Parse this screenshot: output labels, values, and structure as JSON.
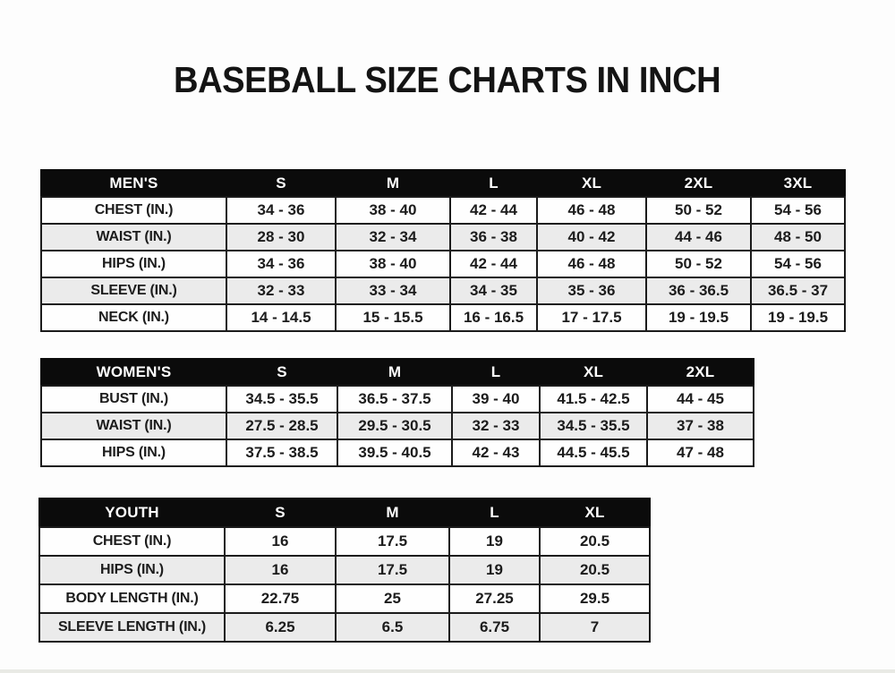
{
  "page_title": "BASEBALL SIZE CHARTS IN INCH",
  "colors": {
    "background": "#fdfdfd",
    "header_bg": "#0b0b0b",
    "header_text": "#ffffff",
    "row_white": "#fefefe",
    "row_gray": "#ebebeb",
    "border": "#1b1b1b",
    "text": "#1c1c1c",
    "title": "#141414"
  },
  "chart_data": [
    {
      "type": "table",
      "id": "mens",
      "title": "MEN'S",
      "columns": [
        "MEN'S",
        "S",
        "M",
        "L",
        "XL",
        "2XL",
        "3XL"
      ],
      "rows": [
        [
          "CHEST (IN.)",
          "34 - 36",
          "38 - 40",
          "42 - 44",
          "46 - 48",
          "50 - 52",
          "54 - 56"
        ],
        [
          "WAIST (IN.)",
          "28 - 30",
          "32 - 34",
          "36 - 38",
          "40 - 42",
          "44 - 46",
          "48 - 50"
        ],
        [
          "HIPS (IN.)",
          "34 - 36",
          "38 - 40",
          "42 - 44",
          "46 - 48",
          "50 - 52",
          "54 - 56"
        ],
        [
          "SLEEVE (IN.)",
          "32 - 33",
          "33 - 34",
          "34 - 35",
          "35 - 36",
          "36 - 36.5",
          "36.5 - 37"
        ],
        [
          "NECK (IN.)",
          "14 - 14.5",
          "15 - 15.5",
          "16 - 16.5",
          "17 - 17.5",
          "19 - 19.5",
          "19 - 19.5"
        ]
      ]
    },
    {
      "type": "table",
      "id": "womens",
      "title": "WOMEN'S",
      "columns": [
        "WOMEN'S",
        "S",
        "M",
        "L",
        "XL",
        "2XL"
      ],
      "rows": [
        [
          "BUST (IN.)",
          "34.5 - 35.5",
          "36.5 - 37.5",
          "39 - 40",
          "41.5 - 42.5",
          "44 - 45"
        ],
        [
          "WAIST (IN.)",
          "27.5 - 28.5",
          "29.5 - 30.5",
          "32 - 33",
          "34.5 - 35.5",
          "37 - 38"
        ],
        [
          "HIPS (IN.)",
          "37.5 - 38.5",
          "39.5 - 40.5",
          "42 - 43",
          "44.5 - 45.5",
          "47 - 48"
        ]
      ]
    },
    {
      "type": "table",
      "id": "youth",
      "title": "YOUTH",
      "columns": [
        "YOUTH",
        "S",
        "M",
        "L",
        "XL"
      ],
      "rows": [
        [
          "CHEST (IN.)",
          "16",
          "17.5",
          "19",
          "20.5"
        ],
        [
          "HIPS (IN.)",
          "16",
          "17.5",
          "19",
          "20.5"
        ],
        [
          "BODY LENGTH (IN.)",
          "22.75",
          "25",
          "27.25",
          "29.5"
        ],
        [
          "SLEEVE LENGTH (IN.)",
          "6.25",
          "6.5",
          "6.75",
          "7"
        ]
      ]
    }
  ]
}
